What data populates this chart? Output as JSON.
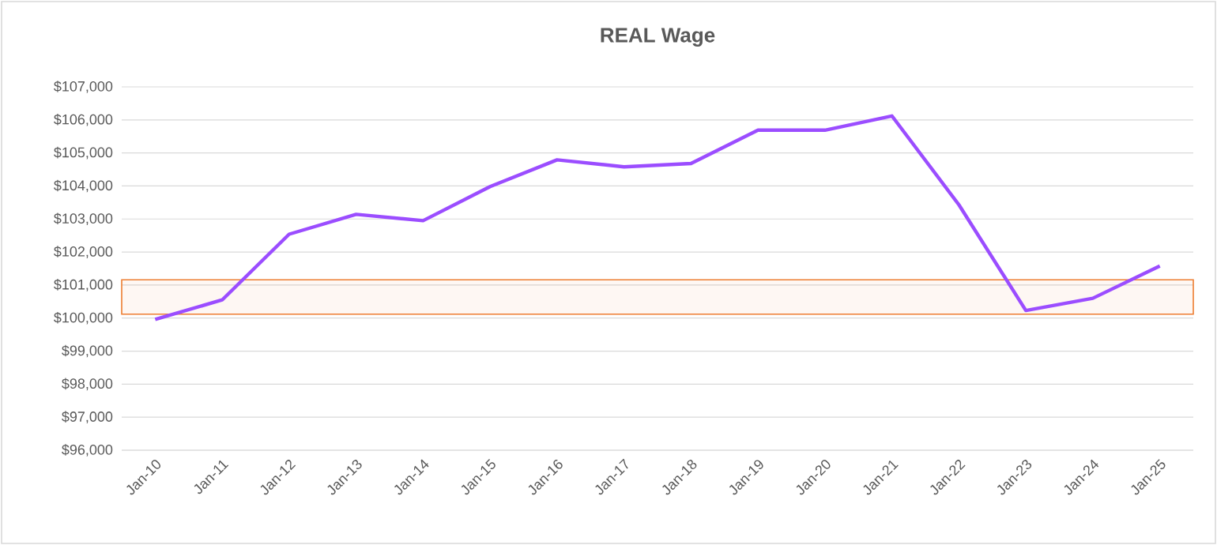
{
  "chart_data": {
    "type": "line",
    "title": "REAL Wage",
    "categories": [
      "Jan-10",
      "Jan-11",
      "Jan-12",
      "Jan-13",
      "Jan-14",
      "Jan-15",
      "Jan-16",
      "Jan-17",
      "Jan-18",
      "Jan-19",
      "Jan-20",
      "Jan-21",
      "Jan-22",
      "Jan-23",
      "Jan-24",
      "Jan-25"
    ],
    "series": [
      {
        "color": "#9b4dff",
        "values": [
          99960,
          100550,
          102540,
          103140,
          102950,
          103980,
          104790,
          104580,
          104680,
          105690,
          105690,
          106120,
          103430,
          100230,
          100600,
          101580
        ]
      }
    ],
    "ylim": [
      96000,
      107000
    ],
    "yticks": [
      {
        "value": 96000,
        "label": "$96,000"
      },
      {
        "value": 97000,
        "label": "$97,000"
      },
      {
        "value": 98000,
        "label": "$98,000"
      },
      {
        "value": 99000,
        "label": "$99,000"
      },
      {
        "value": 100000,
        "label": "$100,000"
      },
      {
        "value": 101000,
        "label": "$101,000"
      },
      {
        "value": 102000,
        "label": "$102,000"
      },
      {
        "value": 103000,
        "label": "$103,000"
      },
      {
        "value": 104000,
        "label": "$104,000"
      },
      {
        "value": 105000,
        "label": "$105,000"
      },
      {
        "value": 106000,
        "label": "$106,000"
      },
      {
        "value": 107000,
        "label": "$107,000"
      }
    ],
    "bands": [
      {
        "axis": "y",
        "from": 100120,
        "to": 101160,
        "color": "#ed7d31"
      }
    ],
    "grid": "y",
    "legend": false,
    "marker": "none",
    "line_style": "solid"
  }
}
